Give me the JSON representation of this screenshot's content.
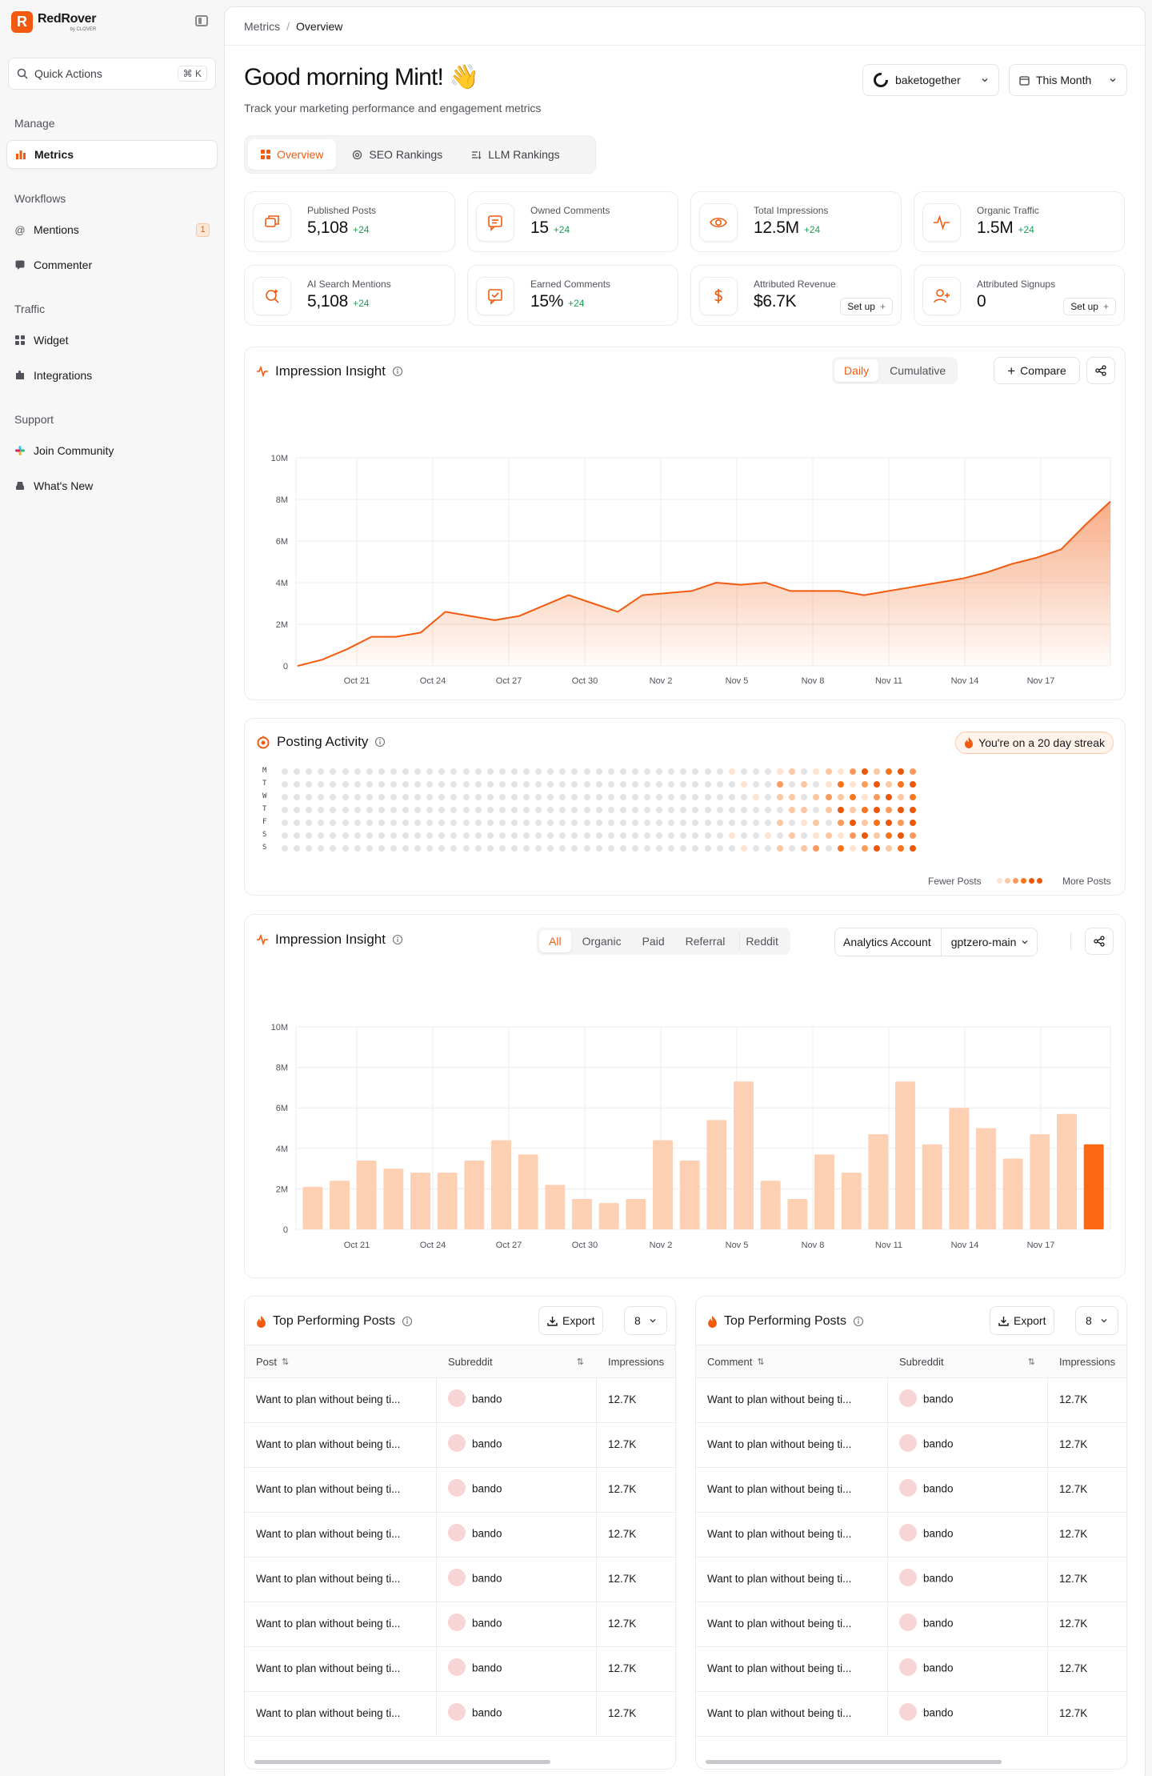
{
  "brand": {
    "name": "RedRover",
    "sub": "by CLOVER",
    "logo_letter": "R",
    "accent": "#f25b0f"
  },
  "sidebar": {
    "quick_actions": "Quick Actions",
    "shortcut": "⌘ K",
    "sections": {
      "manage": "Manage",
      "workflows": "Workflows",
      "traffic": "Traffic",
      "support": "Support"
    },
    "items": {
      "metrics": "Metrics",
      "mentions": "Mentions",
      "mentions_badge": "1",
      "commenter": "Commenter",
      "widget": "Widget",
      "integrations": "Integrations",
      "join_community": "Join Community",
      "whats_new": "What's New"
    }
  },
  "breadcrumb": {
    "parent": "Metrics",
    "separator": "/",
    "current": "Overview"
  },
  "header": {
    "greeting": "Good morning Mint! 👋",
    "subtitle": "Track your marketing performance and engagement metrics",
    "account": "baketogether",
    "period": "This Month"
  },
  "tabs": [
    "Overview",
    "SEO Rankings",
    "LLM Rankings"
  ],
  "stats": [
    {
      "label": "Published Posts",
      "value": "5,108",
      "delta": "+24",
      "icon": "share-post-icon"
    },
    {
      "label": "Owned Comments",
      "value": "15",
      "delta": "+24",
      "icon": "comment-icon"
    },
    {
      "label": "Total Impressions",
      "value": "12.5M",
      "delta": "+24",
      "icon": "eye-icon"
    },
    {
      "label": "Organic Traffic",
      "value": "1.5M",
      "delta": "+24",
      "icon": "pulse-icon"
    },
    {
      "label": "AI Search Mentions",
      "value": "5,108",
      "delta": "+24",
      "icon": "ai-search-icon"
    },
    {
      "label": "Earned Comments",
      "value": "15%",
      "delta": "+24",
      "icon": "comment-check-icon"
    },
    {
      "label": "Attributed Revenue",
      "value": "$6.7K",
      "delta": "",
      "action": "Set up",
      "icon": "dollar-icon"
    },
    {
      "label": "Attributed Signups",
      "value": "0",
      "delta": "",
      "action": "Set up",
      "icon": "user-plus-icon"
    }
  ],
  "impression_line": {
    "title": "Impression Insight",
    "modes": [
      "Daily",
      "Cumulative"
    ],
    "active_mode": "Daily",
    "compare": "Compare"
  },
  "posting_activity": {
    "title": "Posting Activity",
    "streak": "You're on a 20 day streak",
    "days": [
      "M",
      "T",
      "W",
      "T",
      "F",
      "S",
      "S"
    ],
    "legend_low": "Fewer Posts",
    "legend_high": "More Posts",
    "weeks": 53
  },
  "impression_bar": {
    "title": "Impression Insight",
    "filters": [
      "All",
      "Organic",
      "Paid",
      "Referral",
      "Reddit"
    ],
    "active_filter": "All",
    "account_label": "Analytics Account",
    "account_value": "gptzero-main"
  },
  "chart_data": [
    {
      "type": "area",
      "title": "Impression Insight",
      "x": [
        "Oct 19",
        "Oct 20",
        "Oct 21",
        "Oct 22",
        "Oct 23",
        "Oct 24",
        "Oct 25",
        "Oct 26",
        "Oct 27",
        "Oct 28",
        "Oct 29",
        "Oct 30",
        "Oct 31",
        "Nov 1",
        "Nov 2",
        "Nov 3",
        "Nov 4",
        "Nov 5",
        "Nov 6",
        "Nov 7",
        "Nov 8",
        "Nov 9",
        "Nov 10",
        "Nov 11",
        "Nov 12",
        "Nov 13",
        "Nov 14",
        "Nov 15",
        "Nov 16",
        "Nov 17",
        "Nov 18",
        "Nov 19",
        "Nov 20",
        "Nov 21"
      ],
      "xticks": [
        "Oct 21",
        "Oct 24",
        "Oct 27",
        "Oct 30",
        "Nov 2",
        "Nov 5",
        "Nov 8",
        "Nov 11",
        "Nov 14",
        "Nov 17"
      ],
      "yticks": [
        "0",
        "2M",
        "4M",
        "6M",
        "8M",
        "10M"
      ],
      "values": [
        0.0,
        0.3,
        0.8,
        1.4,
        1.4,
        1.6,
        2.6,
        2.4,
        2.2,
        2.4,
        2.9,
        3.4,
        3.0,
        2.6,
        3.4,
        3.5,
        3.6,
        4.0,
        3.9,
        4.0,
        3.6,
        3.6,
        3.6,
        3.4,
        3.6,
        3.8,
        4.0,
        4.2,
        4.5,
        4.9,
        5.2,
        5.6,
        6.8,
        7.9
      ],
      "ylim": [
        0,
        10
      ],
      "unit": "M"
    },
    {
      "type": "bar",
      "title": "Impression Insight",
      "xticks": [
        "Oct 21",
        "Oct 24",
        "Oct 27",
        "Oct 30",
        "Nov 2",
        "Nov 5",
        "Nov 8",
        "Nov 11",
        "Nov 14",
        "Nov 17"
      ],
      "yticks": [
        "0",
        "2M",
        "4M",
        "6M",
        "8M",
        "10M"
      ],
      "values": [
        2.1,
        2.4,
        3.4,
        3.0,
        2.8,
        2.8,
        3.4,
        4.4,
        3.7,
        2.2,
        1.5,
        1.3,
        1.5,
        4.4,
        3.4,
        5.4,
        7.3,
        2.4,
        1.5,
        3.7,
        2.8,
        4.7,
        7.3,
        4.2,
        6.0,
        5.0,
        3.5,
        4.7,
        5.7,
        4.2
      ],
      "highlight_index": 29,
      "ylim": [
        0,
        10
      ],
      "unit": "M"
    }
  ],
  "tables": [
    {
      "title": "Top Performing Posts",
      "export": "Export",
      "count": "8",
      "columns": [
        "Post",
        "Subreddit",
        "Impressions"
      ],
      "rows": [
        [
          "Want to plan without being ti...",
          "bando",
          "12.7K"
        ],
        [
          "Want to plan without being ti...",
          "bando",
          "12.7K"
        ],
        [
          "Want to plan without being ti...",
          "bando",
          "12.7K"
        ],
        [
          "Want to plan without being ti...",
          "bando",
          "12.7K"
        ],
        [
          "Want to plan without being ti...",
          "bando",
          "12.7K"
        ],
        [
          "Want to plan without being ti...",
          "bando",
          "12.7K"
        ],
        [
          "Want to plan without being ti...",
          "bando",
          "12.7K"
        ],
        [
          "Want to plan without being ti...",
          "bando",
          "12.7K"
        ]
      ]
    },
    {
      "title": "Top Performing Posts",
      "export": "Export",
      "count": "8",
      "columns": [
        "Comment",
        "Subreddit",
        "Impressions"
      ],
      "rows": [
        [
          "Want to plan without being ti...",
          "bando",
          "12.7K"
        ],
        [
          "Want to plan without being ti...",
          "bando",
          "12.7K"
        ],
        [
          "Want to plan without being ti...",
          "bando",
          "12.7K"
        ],
        [
          "Want to plan without being ti...",
          "bando",
          "12.7K"
        ],
        [
          "Want to plan without being ti...",
          "bando",
          "12.7K"
        ],
        [
          "Want to plan without being ti...",
          "bando",
          "12.7K"
        ],
        [
          "Want to plan without being ti...",
          "bando",
          "12.7K"
        ],
        [
          "Want to plan without being ti...",
          "bando",
          "12.7K"
        ]
      ]
    }
  ]
}
